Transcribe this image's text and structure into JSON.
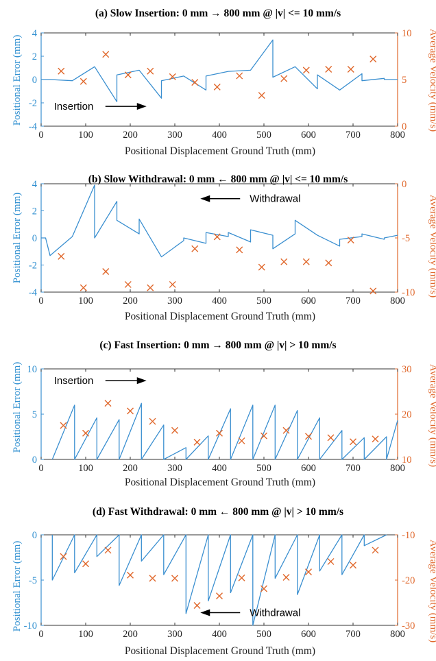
{
  "colors": {
    "error_line": "#3a8fd0",
    "velocity_marker": "#e0682c",
    "axes": "#333333"
  },
  "chart_data": [
    {
      "type": "line",
      "title": "(a) Slow Insertion: 0 mm → 800 mm @ |v| <= 10 mm/s",
      "xlabel": "Positional Displacement Ground Truth (mm)",
      "ylabel_left": "Positional Error (mm)",
      "ylabel_right": "Average Velocity (mm/s)",
      "xlim": [
        0,
        800
      ],
      "ylim_left": [
        -4,
        4
      ],
      "ylim_right": [
        0,
        10
      ],
      "xticks": [
        "0",
        "100",
        "200",
        "300",
        "400",
        "500",
        "600",
        "700",
        "800"
      ],
      "yticks_left": [
        "-4",
        "-2",
        "0",
        "2",
        "4"
      ],
      "yticks_right": [
        "0",
        "5",
        "10"
      ],
      "series": [
        {
          "axis": "left",
          "style": "line",
          "x": [
            0,
            20,
            70,
            120,
            170,
            170,
            220,
            270,
            270,
            320,
            370,
            370,
            420,
            470,
            520,
            520,
            570,
            620,
            620,
            670,
            720,
            720,
            770,
            770,
            800
          ],
          "y": [
            0,
            0,
            -0.1,
            1.1,
            -1.9,
            0.4,
            0.8,
            -1.6,
            -0.1,
            0.3,
            -0.9,
            0.3,
            0.7,
            0.8,
            3.4,
            0.2,
            1.1,
            -0.8,
            0.4,
            -0.9,
            0.5,
            -0.1,
            0.1,
            0,
            0
          ]
        },
        {
          "axis": "right",
          "style": "marker",
          "x": [
            45,
            95,
            145,
            195,
            245,
            295,
            345,
            395,
            445,
            495,
            545,
            595,
            645,
            695,
            745
          ],
          "y": [
            5.9,
            4.8,
            7.7,
            5.5,
            5.9,
            5.3,
            4.7,
            4.2,
            5.4,
            3.3,
            5.1,
            6.0,
            6.1,
            6.1,
            7.2
          ]
        }
      ],
      "annotation": {
        "text": "Insertion",
        "arrow": "right",
        "x": 175,
        "y": -2.3
      }
    },
    {
      "type": "line",
      "title": "(b) Slow Withdrawal: 0 mm ← 800 mm @ |v| <= 10 mm/s",
      "xlabel": "Positional Displacement Ground Truth (mm)",
      "ylabel_left": "Positional Error (mm)",
      "ylabel_right": "Average Velocity (mm/s)",
      "xlim": [
        0,
        800
      ],
      "ylim_left": [
        -4,
        4
      ],
      "ylim_right": [
        -10,
        0
      ],
      "xticks": [
        "0",
        "100",
        "200",
        "300",
        "400",
        "500",
        "600",
        "700",
        "800"
      ],
      "yticks_left": [
        "-4",
        "-2",
        "0",
        "2",
        "4"
      ],
      "yticks_right": [
        "-10",
        "-5",
        "0"
      ],
      "series": [
        {
          "axis": "left",
          "style": "line",
          "x": [
            0,
            10,
            20,
            70,
            120,
            120,
            170,
            170,
            220,
            220,
            270,
            320,
            320,
            370,
            370,
            420,
            420,
            470,
            470,
            520,
            520,
            570,
            570,
            620,
            670,
            670,
            720,
            720,
            770,
            770,
            800
          ],
          "y": [
            0,
            0,
            -1.3,
            0.1,
            3.9,
            0,
            2.7,
            1.3,
            0.3,
            1.4,
            -1.4,
            -0.2,
            0,
            -0.4,
            0.4,
            0.1,
            0.4,
            -0.3,
            0.6,
            0.2,
            -0.8,
            0.3,
            1.3,
            0.2,
            -0.6,
            -0.1,
            0.1,
            0.3,
            -0.1,
            0,
            0.2
          ]
        },
        {
          "axis": "right",
          "style": "marker",
          "x": [
            45,
            95,
            145,
            195,
            245,
            295,
            345,
            395,
            445,
            495,
            545,
            595,
            645,
            695,
            745
          ],
          "y": [
            -6.7,
            -9.6,
            -8.1,
            -9.3,
            -9.6,
            -9.3,
            -6.0,
            -4.9,
            -6.1,
            -7.7,
            -7.2,
            -7.2,
            -7.3,
            -5.2,
            -9.9
          ]
        }
      ],
      "annotation": {
        "text": "Withdrawal",
        "arrow": "left",
        "x": 465,
        "y": 2.9
      }
    },
    {
      "type": "line",
      "title": "(c) Fast Insertion: 0 mm → 800 mm @ |v| > 10 mm/s",
      "xlabel": "Positional Displacement Ground Truth (mm)",
      "ylabel_left": "Positional Error (mm)",
      "ylabel_right": "Average Velocity (mm/s)",
      "xlim": [
        0,
        800
      ],
      "ylim_left": [
        0,
        10
      ],
      "ylim_right": [
        10,
        30
      ],
      "xticks": [
        "0",
        "100",
        "200",
        "300",
        "400",
        "500",
        "600",
        "700",
        "800"
      ],
      "yticks_left": [
        "0",
        "5",
        "10"
      ],
      "yticks_right": [
        "10",
        "20",
        "30"
      ],
      "series": [
        {
          "axis": "left",
          "style": "line",
          "x": [
            25,
            75,
            75,
            125,
            125,
            175,
            175,
            225,
            225,
            275,
            275,
            325,
            325,
            375,
            375,
            425,
            425,
            475,
            475,
            525,
            525,
            575,
            575,
            625,
            625,
            675,
            675,
            725,
            725,
            775,
            775,
            800
          ],
          "y": [
            0,
            6.0,
            0,
            4.6,
            0,
            4.4,
            0,
            6.2,
            0,
            3.8,
            0,
            1.3,
            0,
            2.6,
            0,
            5.6,
            0,
            6.0,
            0,
            6.0,
            0,
            5.4,
            0,
            4.6,
            0,
            3.2,
            0,
            2.4,
            0,
            2.5,
            0,
            4.3
          ]
        },
        {
          "axis": "right",
          "style": "marker",
          "x": [
            50,
            100,
            150,
            200,
            250,
            300,
            350,
            400,
            450,
            500,
            550,
            600,
            650,
            700,
            750
          ],
          "y": [
            17.5,
            15.8,
            22.4,
            20.7,
            18.4,
            16.4,
            13.8,
            15.8,
            14.1,
            15.2,
            16.4,
            15.1,
            14.8,
            13.9,
            14.5
          ]
        }
      ],
      "annotation": {
        "text": "Insertion",
        "arrow": "right",
        "x": 175,
        "y": 8.7
      }
    },
    {
      "type": "line",
      "title": "(d) Fast Withdrawal: 0 mm ← 800 mm @ |v| > 10 mm/s",
      "xlabel": "Positional Displacement Ground Truth (mm)",
      "ylabel_left": "Positional Error (mm)",
      "ylabel_right": "Average Velocity (mm/s)",
      "xlim": [
        0,
        800
      ],
      "ylim_left": [
        -10,
        0
      ],
      "ylim_right": [
        -30,
        -10
      ],
      "xticks": [
        "0",
        "100",
        "200",
        "300",
        "400",
        "500",
        "600",
        "700",
        "800"
      ],
      "yticks_left": [
        "-10",
        "-5",
        "0"
      ],
      "yticks_right": [
        "-30",
        "-20",
        "-10"
      ],
      "series": [
        {
          "axis": "left",
          "style": "line",
          "x": [
            25,
            25,
            75,
            75,
            125,
            125,
            175,
            175,
            225,
            225,
            275,
            275,
            325,
            325,
            375,
            375,
            425,
            425,
            475,
            475,
            525,
            525,
            575,
            575,
            625,
            625,
            675,
            675,
            725,
            725,
            775
          ],
          "y": [
            0,
            -5.0,
            0,
            -4.2,
            0,
            -2.4,
            0,
            -5.6,
            0,
            -2.9,
            0,
            -4.4,
            0,
            -8.7,
            0,
            -7.3,
            0,
            -6.4,
            0,
            -10,
            0,
            -4.8,
            0,
            -6.6,
            0,
            -4.0,
            0,
            -4.4,
            0,
            -1.2,
            0
          ]
        },
        {
          "axis": "right",
          "style": "marker",
          "x": [
            50,
            100,
            150,
            200,
            250,
            300,
            350,
            400,
            450,
            500,
            550,
            600,
            650,
            700,
            750
          ],
          "y": [
            -14.8,
            -16.4,
            -13.4,
            -18.9,
            -19.6,
            -19.6,
            -25.6,
            -23.5,
            -19.5,
            -21.9,
            -19.4,
            -18.2,
            -15.9,
            -16.7,
            -13.4
          ]
        }
      ],
      "annotation": {
        "text": "Withdrawal",
        "arrow": "left",
        "x": 465,
        "y": -8.6
      }
    }
  ]
}
